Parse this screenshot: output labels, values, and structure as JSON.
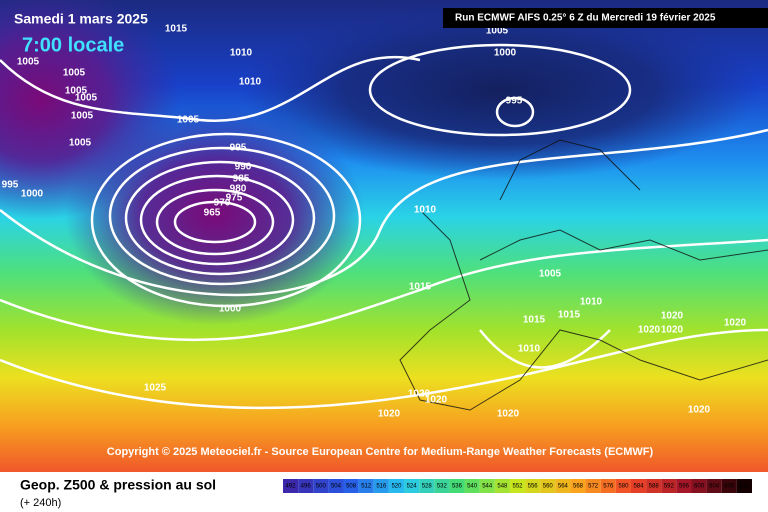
{
  "header": {
    "date": "Samedi 1 mars 2025",
    "time": "7:00 locale",
    "run": "Run ECMWF AIFS 0.25° 6 Z du Mercredi 19 février 2025"
  },
  "copyright": "Copyright © 2025 Meteociel.fr - Source European Centre for Medium-Range Weather Forecasts (ECMWF)",
  "isobar_labels": [
    1015,
    1010,
    1010,
    1005,
    1005,
    1005,
    1005,
    1005,
    1005,
    1005,
    995,
    1000,
    995,
    990,
    985,
    980,
    975,
    970,
    965,
    1005,
    1000,
    995,
    1010,
    1005,
    1015,
    1010,
    1015,
    1015,
    1020,
    1020,
    1020,
    1020,
    1010,
    1000,
    1025,
    1020,
    1020,
    1020,
    1020,
    1020
  ],
  "footer": {
    "title": "Geop. Z500 & pression au sol",
    "lead": "(+ 240h)"
  },
  "scale": [
    492,
    496,
    500,
    504,
    508,
    512,
    516,
    520,
    524,
    528,
    532,
    536,
    540,
    544,
    548,
    552,
    556,
    560,
    564,
    568,
    572,
    576,
    580,
    584,
    588,
    592,
    596,
    600,
    604,
    608,
    612
  ]
}
